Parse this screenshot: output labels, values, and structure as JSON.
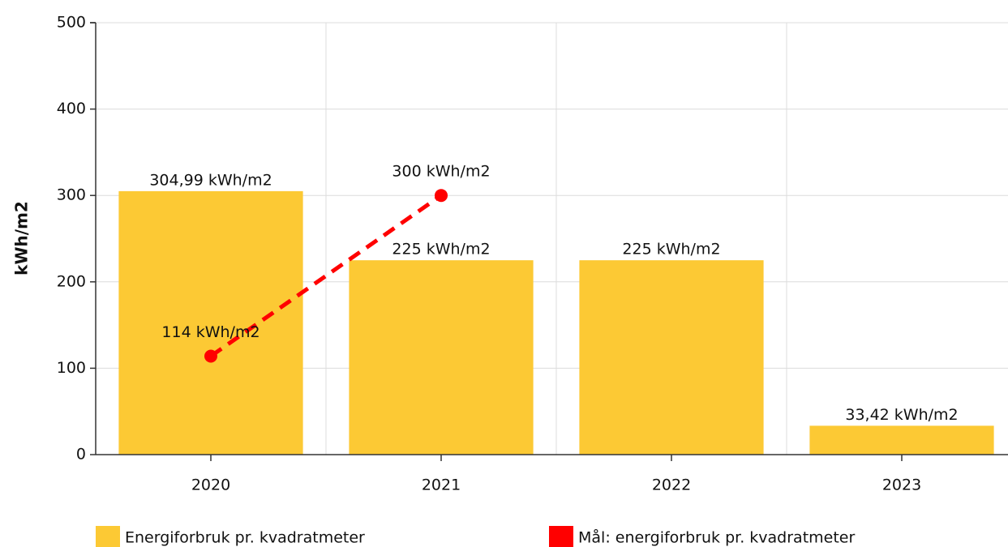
{
  "chart_data": {
    "type": "bar",
    "y_label": "kWh/m2",
    "categories": [
      "2020",
      "2021",
      "2022",
      "2023"
    ],
    "series": [
      {
        "name": "Energiforbruk pr. kvadratmeter",
        "type": "bar",
        "color": "#fcc934",
        "values": [
          304.99,
          225,
          225,
          33.42
        ],
        "value_labels": [
          "304,99 kWh/m2",
          "225 kWh/m2",
          "225 kWh/m2",
          "33,42 kWh/m2"
        ]
      },
      {
        "name": "Mål: energiforbruk pr. kvadratmeter",
        "type": "line",
        "color": "#ff0000",
        "values": [
          114,
          300,
          null,
          null
        ],
        "value_labels": [
          "114 kWh/m2",
          "300 kWh/m2",
          null,
          null
        ]
      }
    ],
    "ylim": [
      0,
      500
    ],
    "yticks": [
      0,
      100,
      200,
      300,
      400,
      500
    ],
    "grid": true
  }
}
